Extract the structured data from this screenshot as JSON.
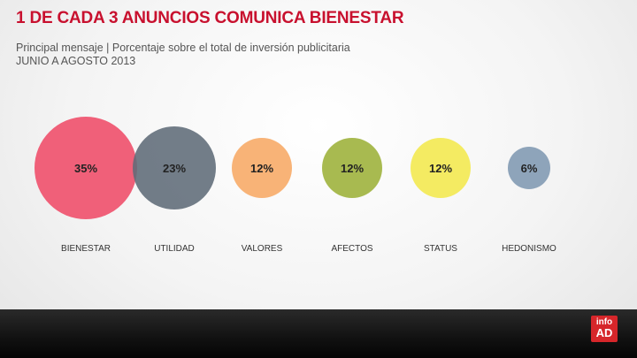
{
  "header": {
    "title": "1 DE CADA 3 ANUNCIOS COMUNICA BIENESTAR",
    "subtitle_line1": "Principal mensaje | Porcentaje sobre el total de inversión publicitaria",
    "subtitle_line2": "JUNIO A AGOSTO 2013"
  },
  "chart_data": {
    "type": "bubble",
    "title": "1 DE CADA 3 ANUNCIOS COMUNICA BIENESTAR",
    "categories": [
      "BIENESTAR",
      "UTILIDAD",
      "VALORES",
      "AFECTOS",
      "STATUS",
      "HEDONISMO"
    ],
    "values": [
      35,
      23,
      12,
      12,
      12,
      6
    ],
    "labels": [
      "35%",
      "23%",
      "12%",
      "12%",
      "12%",
      "6%"
    ],
    "unit": "%",
    "colors": [
      "#ef4b68",
      "#5f6b78",
      "#f7a964",
      "#9cb038",
      "#f2e84c",
      "#8098b2"
    ]
  },
  "logo": {
    "line1": "info",
    "line2": "AD"
  }
}
